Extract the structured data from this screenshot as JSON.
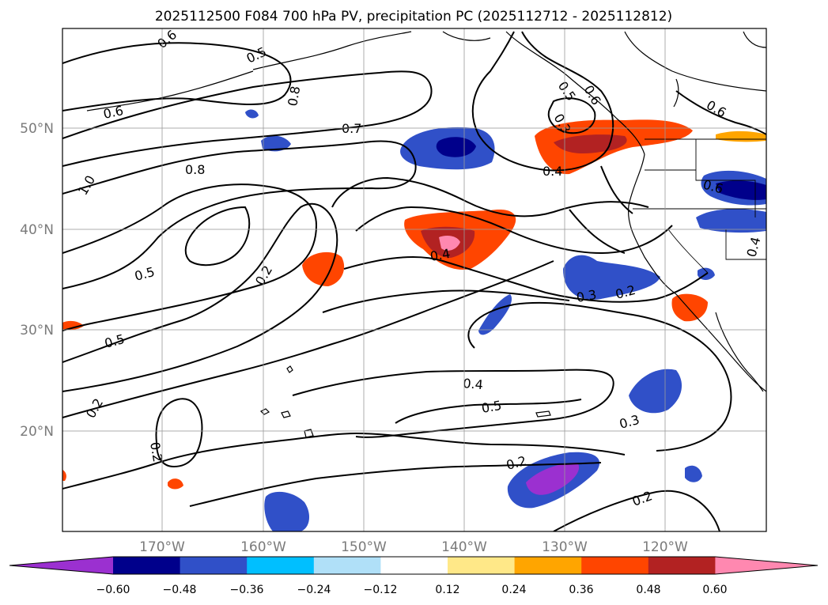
{
  "chart_data": {
    "type": "map_contour",
    "title": "2025112500 F084 700 hPa PV, precipitation PC (2025112712 - 2025112812)",
    "lat_ticks": [
      "50°N",
      "40°N",
      "30°N",
      "20°N"
    ],
    "lon_ticks": [
      "170°W",
      "160°W",
      "150°W",
      "140°W",
      "130°W",
      "120°W"
    ],
    "grid": true,
    "colorbar": {
      "orientation": "horizontal",
      "extend": "both",
      "ticks": [
        "−0.60",
        "−0.48",
        "−0.36",
        "−0.24",
        "−0.12",
        "0.12",
        "0.24",
        "0.36",
        "0.48",
        "0.60"
      ],
      "colors": [
        "#9b30d0",
        "#00008b",
        "#3050c8",
        "#00bfff",
        "#b0e0f8",
        "#ffffff",
        "#ffe888",
        "#ffa500",
        "#ff4500",
        "#b22222",
        "#ff88b0"
      ]
    },
    "contour_labels": [
      "0.6",
      "0.5",
      "0.8",
      "0.6",
      "0.7",
      "0.8",
      "1.0",
      "0.5",
      "0.2",
      "0.5",
      "0.4",
      "0.5",
      "0.6",
      "0.3",
      "0.4",
      "0.6",
      "0.6",
      "0.4",
      "0.3",
      "0.2",
      "0.4",
      "0.5",
      "0.2",
      "0.2",
      "0.2",
      "0.3",
      "0.2"
    ]
  }
}
